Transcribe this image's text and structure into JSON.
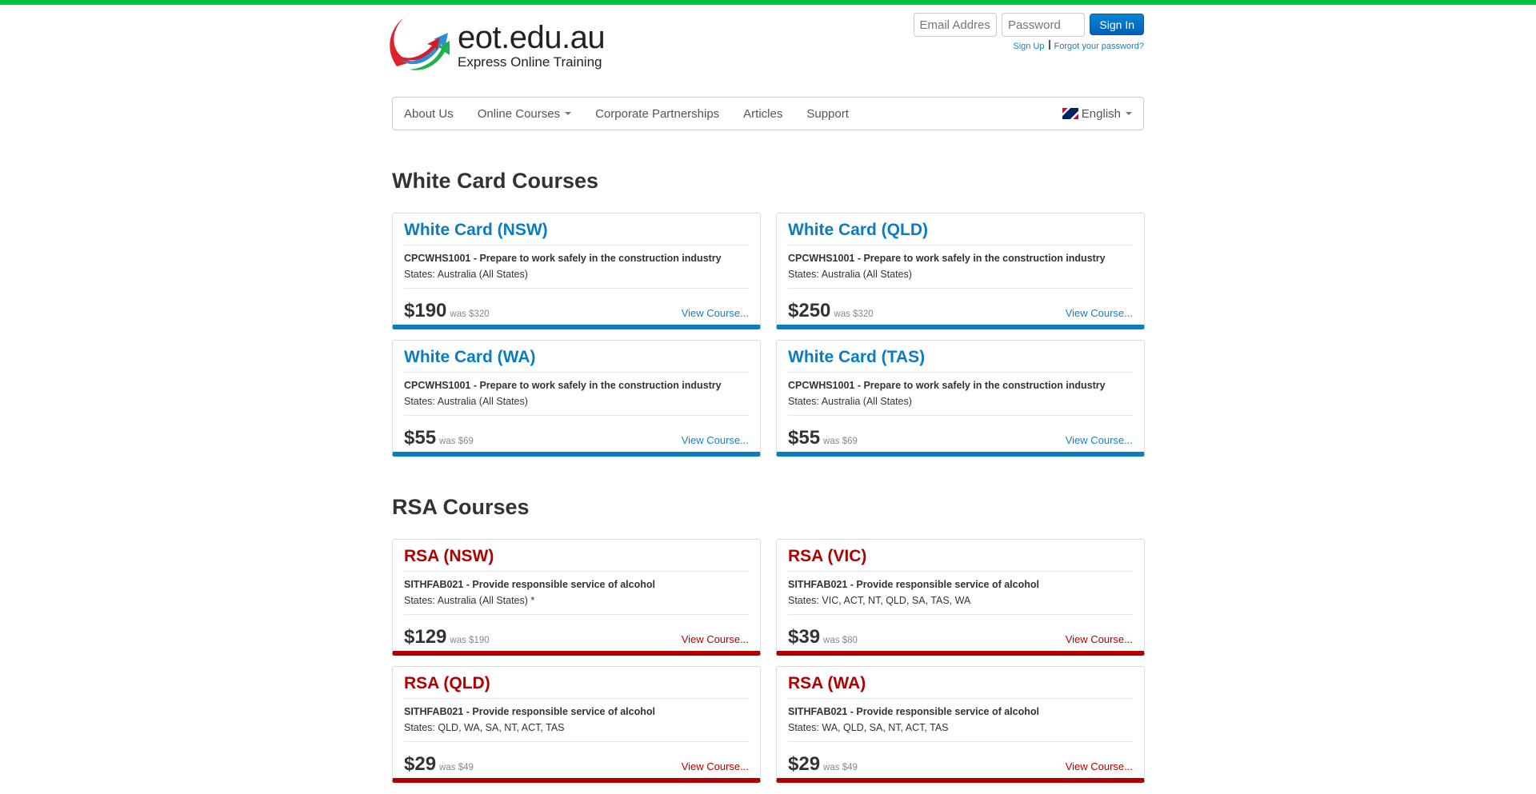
{
  "header": {
    "logo_main": "eot.edu.au",
    "logo_sub": "Express Online Training",
    "email_placeholder": "Email Address",
    "password_placeholder": "Password",
    "sign_in": "Sign In",
    "sign_up": "Sign Up",
    "forgot": "Forgot your password?"
  },
  "nav": {
    "items": [
      "About Us",
      "Online Courses",
      "Corporate Partnerships",
      "Articles",
      "Support"
    ],
    "language": "English"
  },
  "colors": {
    "topbar": "#00c040",
    "white_card": "#0a7cc4",
    "rsa": "#b00000"
  },
  "sections": [
    {
      "title": "White Card Courses",
      "cards": [
        {
          "title": "White Card (NSW)",
          "code": "CPCWHS1001 - Prepare to work safely in the construction industry",
          "states": "States: Australia (All States)",
          "price": "$190",
          "was": "was $320",
          "link": "View Course..."
        },
        {
          "title": "White Card (QLD)",
          "code": "CPCWHS1001 - Prepare to work safely in the construction industry",
          "states": "States: Australia (All States)",
          "price": "$250",
          "was": "was $320",
          "link": "View Course..."
        },
        {
          "title": "White Card (WA)",
          "code": "CPCWHS1001 - Prepare to work safely in the construction industry",
          "states": "States: Australia (All States)",
          "price": "$55",
          "was": "was $69",
          "link": "View Course..."
        },
        {
          "title": "White Card (TAS)",
          "code": "CPCWHS1001 - Prepare to work safely in the construction industry",
          "states": "States: Australia (All States)",
          "price": "$55",
          "was": "was $69",
          "link": "View Course..."
        }
      ]
    },
    {
      "title": "RSA Courses",
      "cards": [
        {
          "title": "RSA (NSW)",
          "code": "SITHFAB021 - Provide responsible service of alcohol",
          "states": "States: Australia (All States) *",
          "price": "$129",
          "was": "was $190",
          "link": "View Course..."
        },
        {
          "title": "RSA (VIC)",
          "code": "SITHFAB021 - Provide responsible service of alcohol",
          "states": "States: VIC, ACT, NT, QLD, SA, TAS, WA",
          "price": "$39",
          "was": "was $80",
          "link": "View Course..."
        },
        {
          "title": "RSA (QLD)",
          "code": "SITHFAB021 - Provide responsible service of alcohol",
          "states": "States: QLD, WA, SA, NT, ACT, TAS",
          "price": "$29",
          "was": "was $49",
          "link": "View Course..."
        },
        {
          "title": "RSA (WA)",
          "code": "SITHFAB021 - Provide responsible service of alcohol",
          "states": "States: WA, QLD, SA, NT, ACT, TAS",
          "price": "$29",
          "was": "was $49",
          "link": "View Course..."
        }
      ]
    }
  ]
}
